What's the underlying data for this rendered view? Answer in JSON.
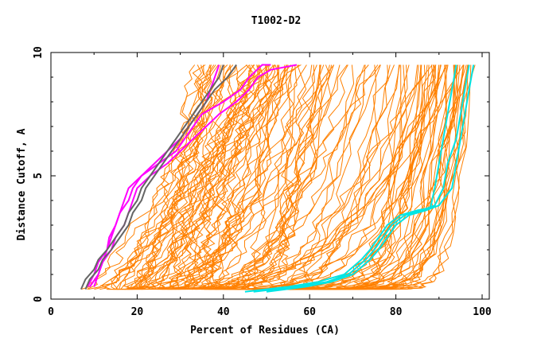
{
  "chart_data": {
    "type": "line",
    "title": "T1002-D2",
    "xlabel": "Percent of Residues (CA)",
    "ylabel": "Distance Cutoff, A",
    "xlim": [
      0,
      100
    ],
    "ylim": [
      0,
      10
    ],
    "x_ticks": [
      0,
      20,
      40,
      60,
      80,
      100
    ],
    "x_tick_labels": [
      "0",
      "20",
      "40",
      "60",
      "80",
      "100"
    ],
    "y_ticks": [
      0,
      5,
      10
    ],
    "y_tick_labels": [
      "0",
      "5",
      "10"
    ],
    "grid": false,
    "legend": "none",
    "colors": {
      "background_models": "#ff8000",
      "highlight_magenta": "#ff00ff",
      "highlight_gray": "#666666",
      "highlight_cyan": "#00e5e5",
      "axes": "#000000"
    },
    "background_model_count": 130,
    "series": [
      {
        "color": "#ff00ff",
        "points": [
          [
            8.5,
            0.5
          ],
          [
            10,
            1
          ],
          [
            11,
            1.5
          ],
          [
            13,
            2
          ],
          [
            13.5,
            2.5
          ],
          [
            15,
            3
          ],
          [
            16,
            3.5
          ],
          [
            17,
            4
          ],
          [
            18,
            4.5
          ],
          [
            21,
            5
          ],
          [
            25,
            5.5
          ],
          [
            29,
            6
          ],
          [
            31,
            6.5
          ],
          [
            33,
            7
          ],
          [
            35,
            7.5
          ],
          [
            40,
            8
          ],
          [
            44,
            8.5
          ],
          [
            46,
            9
          ],
          [
            49,
            9.5
          ],
          [
            51,
            9.5
          ]
        ]
      },
      {
        "color": "#ff00ff",
        "points": [
          [
            9,
            0.5
          ],
          [
            11,
            1
          ],
          [
            12,
            1.5
          ],
          [
            14,
            2
          ],
          [
            15,
            2.5
          ],
          [
            17,
            3
          ],
          [
            18,
            3.5
          ],
          [
            19,
            4
          ],
          [
            20,
            4.5
          ],
          [
            23,
            5
          ],
          [
            27,
            5.5
          ],
          [
            30,
            6
          ],
          [
            33,
            6.5
          ],
          [
            36,
            7
          ],
          [
            39,
            7.5
          ],
          [
            43,
            8
          ],
          [
            46,
            8.5
          ],
          [
            48,
            9
          ],
          [
            51,
            9.3
          ],
          [
            57,
            9.5
          ]
        ]
      },
      {
        "color": "#ff00ff",
        "points": [
          [
            10,
            0.5
          ],
          [
            11,
            1
          ],
          [
            12,
            1.5
          ],
          [
            13,
            2
          ],
          [
            14,
            2.5
          ],
          [
            15,
            3
          ],
          [
            16,
            3.5
          ],
          [
            18,
            4
          ],
          [
            19,
            4.5
          ],
          [
            21,
            5
          ],
          [
            24,
            5.5
          ],
          [
            27,
            6
          ],
          [
            30,
            6.5
          ],
          [
            32,
            7
          ],
          [
            34,
            7.5
          ],
          [
            36,
            8
          ],
          [
            37,
            8.5
          ],
          [
            38,
            9
          ],
          [
            39,
            9.5
          ]
        ]
      },
      {
        "color": "#666666",
        "points": [
          [
            7,
            0.4
          ],
          [
            8,
            0.8
          ],
          [
            10,
            1.2
          ],
          [
            11,
            1.6
          ],
          [
            13,
            2
          ],
          [
            15,
            2.5
          ],
          [
            17,
            3
          ],
          [
            18,
            3.5
          ],
          [
            20,
            4
          ],
          [
            21,
            4.5
          ],
          [
            23,
            5
          ],
          [
            25,
            5.5
          ],
          [
            27,
            6
          ],
          [
            29,
            6.5
          ],
          [
            31,
            7
          ],
          [
            33,
            7.5
          ],
          [
            35,
            8
          ],
          [
            37,
            8.5
          ],
          [
            39,
            9
          ],
          [
            40,
            9.5
          ]
        ]
      },
      {
        "color": "#666666",
        "points": [
          [
            8,
            0.4
          ],
          [
            9,
            0.8
          ],
          [
            11,
            1.2
          ],
          [
            12,
            1.6
          ],
          [
            14,
            2
          ],
          [
            16,
            2.5
          ],
          [
            18,
            3
          ],
          [
            19,
            3.5
          ],
          [
            21,
            4
          ],
          [
            22,
            4.5
          ],
          [
            24,
            5
          ],
          [
            26,
            5.5
          ],
          [
            28,
            6
          ],
          [
            30,
            6.5
          ],
          [
            32,
            7
          ],
          [
            34,
            7.5
          ],
          [
            36,
            8
          ],
          [
            38,
            8.5
          ],
          [
            41,
            9
          ],
          [
            43,
            9.5
          ]
        ]
      },
      {
        "color": "#00e5e5",
        "points": [
          [
            45,
            0.3
          ],
          [
            55,
            0.5
          ],
          [
            62,
            0.7
          ],
          [
            68,
            1
          ],
          [
            70,
            1.3
          ],
          [
            72,
            1.6
          ],
          [
            74,
            2
          ],
          [
            76,
            2.5
          ],
          [
            78,
            3
          ],
          [
            81,
            3.4
          ],
          [
            85,
            3.6
          ],
          [
            88,
            3.7
          ],
          [
            89,
            4.5
          ],
          [
            90,
            5.5
          ],
          [
            91,
            6.5
          ],
          [
            92,
            7.5
          ],
          [
            93,
            8.5
          ],
          [
            94,
            9.5
          ]
        ]
      },
      {
        "color": "#00e5e5",
        "points": [
          [
            47,
            0.3
          ],
          [
            57,
            0.5
          ],
          [
            64,
            0.7
          ],
          [
            69,
            1
          ],
          [
            71,
            1.3
          ],
          [
            73,
            1.6
          ],
          [
            75,
            2
          ],
          [
            77,
            2.5
          ],
          [
            79,
            3
          ],
          [
            82,
            3.4
          ],
          [
            86,
            3.6
          ],
          [
            89,
            3.8
          ],
          [
            91,
            4.5
          ],
          [
            92,
            5.5
          ],
          [
            94,
            6.5
          ],
          [
            95,
            7.5
          ],
          [
            96,
            8.5
          ],
          [
            97,
            9.5
          ]
        ]
      },
      {
        "color": "#00e5e5",
        "points": [
          [
            50,
            0.3
          ],
          [
            59,
            0.5
          ],
          [
            65,
            0.7
          ],
          [
            70,
            1
          ],
          [
            72,
            1.3
          ],
          [
            74,
            1.6
          ],
          [
            76,
            2
          ],
          [
            78,
            2.5
          ],
          [
            80,
            3
          ],
          [
            83,
            3.4
          ],
          [
            87,
            3.6
          ],
          [
            90,
            3.8
          ],
          [
            93,
            4.5
          ],
          [
            94,
            5.5
          ],
          [
            95,
            6.5
          ],
          [
            96,
            7.5
          ],
          [
            97,
            8.5
          ],
          [
            98,
            9.5
          ]
        ]
      }
    ]
  }
}
